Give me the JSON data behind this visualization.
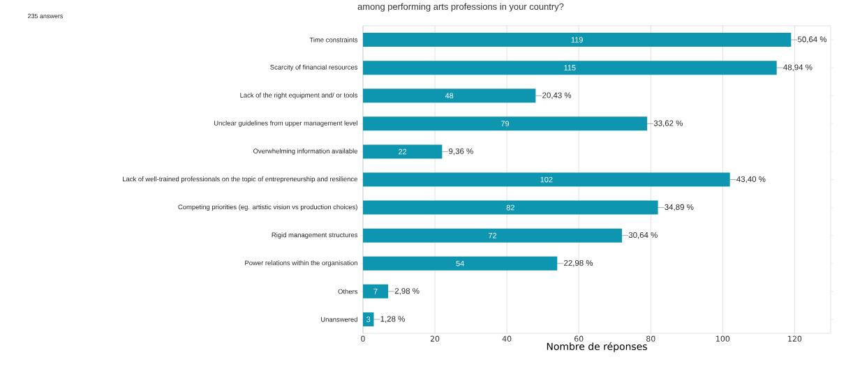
{
  "chart_data": {
    "type": "bar",
    "orientation": "horizontal",
    "title": "among performing arts professions in your country?",
    "categories": [
      "Time constraints",
      "Scarcity of financial resources",
      "Lack of the right equipment and/ or tools",
      "Unclear guidelines from upper management level",
      "Overwhelming information available",
      "Lack of well-trained professionals on the topic of entrepreneurship and resilience",
      "Competing priorities (eg. artistic vision vs production choices)",
      "Rigid management structures",
      "Power relations within the organisation",
      "Others",
      "Unanswered"
    ],
    "values": [
      119,
      115,
      48,
      79,
      22,
      102,
      82,
      72,
      54,
      7,
      3
    ],
    "color": "#0e95b0",
    "data_labels": true,
    "xlabel": "Nombre de réponses",
    "xlim": [
      0,
      130
    ],
    "xticks": [
      0,
      20,
      40,
      60,
      80,
      100,
      120
    ],
    "grid": "x",
    "annotations": [
      "235 answers",
      {
        "text": "50,64 %",
        "x": 119,
        "y": "Time constraints"
      },
      {
        "text": "48,94 %",
        "x": 115,
        "y": "Scarcity of financial resources"
      },
      {
        "text": "20,43 %",
        "x": 48,
        "y": "Lack of the right equipment and/ or tools"
      },
      {
        "text": "33,62 %",
        "x": 79,
        "y": "Unclear guidelines from upper management level"
      },
      {
        "text": "9,36 %",
        "x": 22,
        "y": "Overwhelming information available"
      },
      {
        "text": "43,40 %",
        "x": 102,
        "y": "Lack of well-trained professionals on the topic of entrepreneurship and resilience"
      },
      {
        "text": "34,89 %",
        "x": 82,
        "y": "Competing priorities (eg. artistic vision vs production choices)"
      },
      {
        "text": "30,64 %",
        "x": 72,
        "y": "Rigid management structures"
      },
      {
        "text": "22,98 %",
        "x": 54,
        "y": "Power relations within the organisation"
      },
      {
        "text": "2,98 %",
        "x": 7,
        "y": "Others"
      },
      {
        "text": "1,28 %",
        "x": 3,
        "y": "Unanswered"
      }
    ]
  }
}
